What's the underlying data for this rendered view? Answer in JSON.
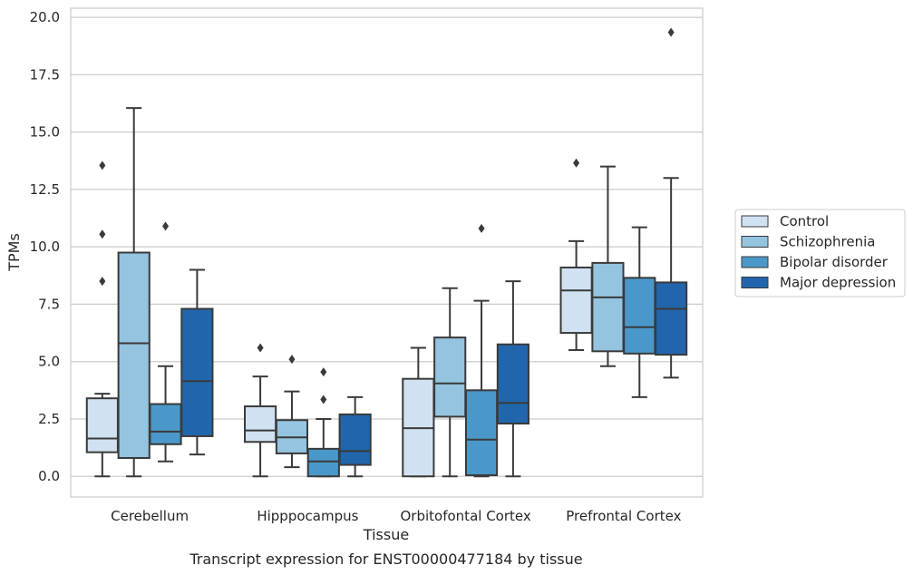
{
  "chart_data": {
    "type": "box",
    "title": "Transcript expression for ENST00000477184 by tissue",
    "xlabel": "Tissue",
    "ylabel": "TPMs",
    "ylim": [
      -0.9,
      20.4
    ],
    "yticks": [
      "0.0",
      "2.5",
      "5.0",
      "7.5",
      "10.0",
      "12.5",
      "15.0",
      "17.5",
      "20.0"
    ],
    "ytick_values": [
      0,
      2.5,
      5,
      7.5,
      10,
      12.5,
      15,
      17.5,
      20
    ],
    "grid": true,
    "legend_position": "right-center",
    "categories": [
      "Cerebellum",
      "Hipppocampus",
      "Orbitofontal Cortex",
      "Prefrontal Cortex"
    ],
    "series": [
      {
        "name": "Control",
        "color": "#d0e1f2",
        "boxes": [
          {
            "whislo": 0.0,
            "q1": 1.05,
            "med": 1.65,
            "q3": 3.4,
            "whishi": 3.6,
            "fliers": [
              13.55,
              10.55,
              8.5
            ]
          },
          {
            "whislo": 0.0,
            "q1": 1.5,
            "med": 2.0,
            "q3": 3.05,
            "whishi": 4.35,
            "fliers": [
              5.6
            ]
          },
          {
            "whislo": 0.0,
            "q1": 0.0,
            "med": 2.1,
            "q3": 4.25,
            "whishi": 5.6,
            "fliers": []
          },
          {
            "whislo": 5.5,
            "q1": 6.25,
            "med": 8.1,
            "q3": 9.1,
            "whishi": 10.25,
            "fliers": [
              13.65
            ]
          }
        ]
      },
      {
        "name": "Schizophrenia",
        "color": "#94c4df",
        "boxes": [
          {
            "whislo": 0.0,
            "q1": 0.8,
            "med": 5.8,
            "q3": 9.75,
            "whishi": 16.05,
            "fliers": []
          },
          {
            "whislo": 0.4,
            "q1": 1.0,
            "med": 1.7,
            "q3": 2.45,
            "whishi": 3.7,
            "fliers": [
              5.1
            ]
          },
          {
            "whislo": 0.0,
            "q1": 2.6,
            "med": 4.05,
            "q3": 6.05,
            "whishi": 8.2,
            "fliers": []
          },
          {
            "whislo": 4.8,
            "q1": 5.45,
            "med": 7.8,
            "q3": 9.3,
            "whishi": 13.5,
            "fliers": []
          }
        ]
      },
      {
        "name": "Bipolar disorder",
        "color": "#4a98c9",
        "boxes": [
          {
            "whislo": 0.65,
            "q1": 1.4,
            "med": 1.95,
            "q3": 3.15,
            "whishi": 4.8,
            "fliers": [
              10.9
            ]
          },
          {
            "whislo": 0.0,
            "q1": 0.0,
            "med": 0.65,
            "q3": 1.2,
            "whishi": 2.5,
            "fliers": [
              3.35,
              4.55
            ]
          },
          {
            "whislo": 0.0,
            "q1": 0.05,
            "med": 1.6,
            "q3": 3.75,
            "whishi": 7.65,
            "fliers": [
              10.8
            ]
          },
          {
            "whislo": 3.45,
            "q1": 5.35,
            "med": 6.5,
            "q3": 8.65,
            "whishi": 10.85,
            "fliers": []
          }
        ]
      },
      {
        "name": "Major depression",
        "color": "#2166ac",
        "boxes": [
          {
            "whislo": 0.95,
            "q1": 1.75,
            "med": 4.15,
            "q3": 7.3,
            "whishi": 9.0,
            "fliers": []
          },
          {
            "whislo": 0.0,
            "q1": 0.5,
            "med": 1.1,
            "q3": 2.7,
            "whishi": 3.45,
            "fliers": []
          },
          {
            "whislo": 0.0,
            "q1": 2.3,
            "med": 3.2,
            "q3": 5.75,
            "whishi": 8.5,
            "fliers": []
          },
          {
            "whislo": 4.3,
            "q1": 5.3,
            "med": 7.3,
            "q3": 8.45,
            "whishi": 13.0,
            "fliers": [
              19.35
            ]
          }
        ]
      }
    ]
  }
}
